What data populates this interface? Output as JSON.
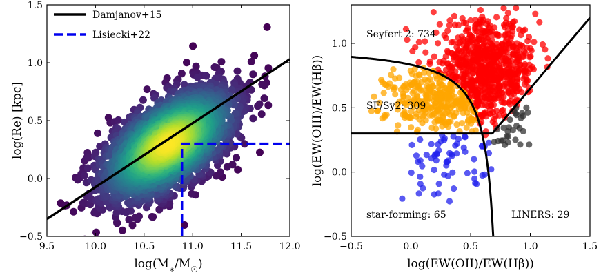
{
  "chart_data": [
    {
      "type": "scatter",
      "xlabel": "log(M*/M☉)",
      "ylabel": "log(Re) [kpc]",
      "xlim": [
        9.5,
        12.0
      ],
      "ylim": [
        -0.5,
        1.5
      ],
      "xticks": [
        "9.5",
        "10.0",
        "10.5",
        "11.0",
        "11.5",
        "12.0"
      ],
      "yticks": [
        "−0.5",
        "0.0",
        "0.5",
        "1.0",
        "1.5"
      ],
      "legend_position": "top-left",
      "density_colormap": "viridis",
      "point_cloud": {
        "center": [
          10.75,
          0.3
        ],
        "slope": 0.55,
        "spread_along": 0.38,
        "spread_across": 0.18
      },
      "lines": [
        {
          "name": "Damjanov+15",
          "style": "solid",
          "color": "#000000",
          "x": [
            9.5,
            12.0
          ],
          "y": [
            -0.35,
            1.03
          ]
        },
        {
          "name": "Lisiecki+22",
          "style": "dashed",
          "color": "#0000ee",
          "x": [
            10.89,
            10.89,
            12.0
          ],
          "y": [
            -0.5,
            0.3,
            0.3
          ]
        }
      ],
      "legend": [
        "Damjanov+15",
        "Lisiecki+22"
      ]
    },
    {
      "type": "scatter",
      "xlabel": "log(EW(OII)/EW(Hβ))",
      "ylabel": "log(EW(OIII)/EW(Hβ))",
      "xlim": [
        -0.5,
        1.5
      ],
      "ylim": [
        -0.5,
        1.3
      ],
      "xticks": [
        "−0.5",
        "0.0",
        "0.5",
        "1.0",
        "1.5"
      ],
      "yticks": [
        "−0.5",
        "0.0",
        "0.5",
        "1.0"
      ],
      "classes": [
        {
          "name": "Seyfert 2",
          "count": 734,
          "color": "#ff0000",
          "annotation": "Seyfert 2: 734"
        },
        {
          "name": "SF/Sy2",
          "count": 309,
          "color": "#ffa500",
          "annotation": "SF/Sy2: 309"
        },
        {
          "name": "star-forming",
          "count": 65,
          "color": "#2222ee",
          "annotation": "star-forming: 65"
        },
        {
          "name": "LINERS",
          "count": 29,
          "color": "#333333",
          "annotation": "LINERS: 29"
        }
      ]
    }
  ]
}
